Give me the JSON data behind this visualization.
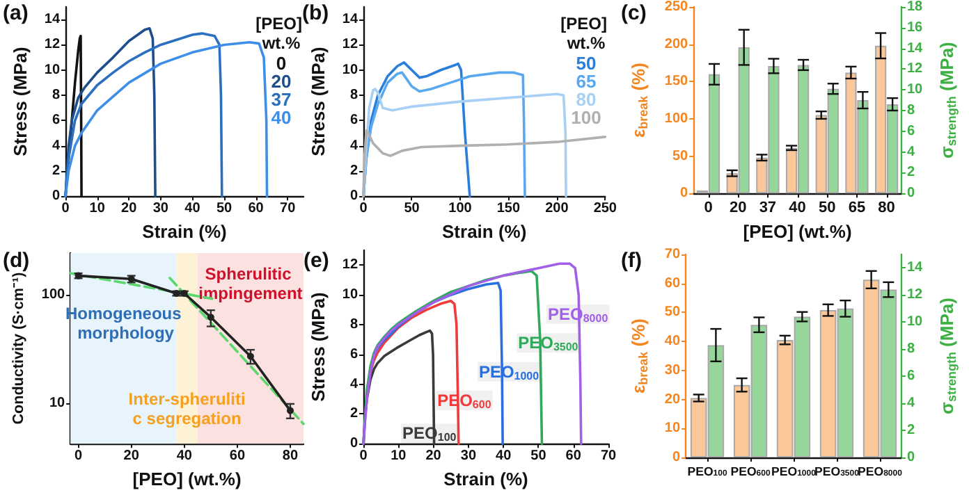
{
  "chart_data": [
    {
      "type": "line",
      "annotations": [
        "(a)"
      ],
      "xlabel": "Strain (%)",
      "ylabel": "Stress (MPa)",
      "legend_title": "[PEO] wt.%",
      "legend": "top right",
      "marker": "none",
      "xlim": [
        0,
        75
      ],
      "xticks": [
        0,
        10,
        20,
        30,
        40,
        50,
        60,
        70
      ],
      "ylim": [
        0,
        15
      ],
      "yticks": [
        0,
        2,
        4,
        6,
        8,
        10,
        12,
        14
      ],
      "series": [
        {
          "name": "0",
          "color": "#111111",
          "x": [
            0,
            1,
            2,
            3,
            4,
            4.5,
            4.8,
            4.95,
            5.05
          ],
          "values": [
            0,
            3,
            6,
            9,
            11.5,
            12.5,
            12.7,
            6,
            0
          ]
        },
        {
          "name": "20",
          "color": "#1f4e8c",
          "x": [
            0,
            1,
            2,
            4,
            6,
            10,
            15,
            20,
            25,
            26.5,
            27.5,
            28,
            28.3
          ],
          "values": [
            0,
            4,
            6,
            7.8,
            8.6,
            9.8,
            11,
            12.3,
            13.2,
            13.3,
            12.5,
            8,
            0
          ]
        },
        {
          "name": "37",
          "color": "#2a6fc0",
          "x": [
            0,
            1,
            3,
            5,
            10,
            15,
            20,
            25,
            30,
            35,
            40,
            43,
            47,
            48.5,
            49,
            49.3
          ],
          "values": [
            0,
            3,
            6,
            7.3,
            8.8,
            9.8,
            10.7,
            11.4,
            12,
            12.4,
            12.8,
            12.9,
            12.7,
            12,
            8,
            0
          ]
        },
        {
          "name": "40",
          "color": "#3d8ee8",
          "x": [
            0,
            1,
            3,
            5,
            10,
            20,
            30,
            40,
            50,
            58,
            61,
            62.5,
            63.3,
            63.5
          ],
          "values": [
            0,
            2,
            4,
            5,
            6.8,
            9,
            10.5,
            11.4,
            12,
            12.2,
            12.1,
            11,
            6,
            0
          ]
        }
      ]
    },
    {
      "type": "line",
      "annotations": [
        "(b)"
      ],
      "xlabel": "Strain (%)",
      "ylabel": "Stress (MPa)",
      "legend_title": "[PEO] wt.%",
      "legend": "top right",
      "marker": "none",
      "xlim": [
        0,
        250
      ],
      "xticks": [
        0,
        50,
        100,
        150,
        200,
        250
      ],
      "ylim": [
        0,
        15
      ],
      "yticks": [
        0,
        2,
        4,
        6,
        8,
        10,
        12,
        14
      ],
      "series": [
        {
          "name": "50",
          "color": "#2a7fdc",
          "x": [
            0,
            3,
            8,
            15,
            25,
            35,
            42,
            50,
            58,
            65,
            80,
            95,
            98,
            101,
            105,
            110
          ],
          "values": [
            0,
            3,
            6,
            8,
            9.5,
            10.3,
            10.6,
            10,
            9.4,
            9.5,
            10,
            10.4,
            10.5,
            10,
            5,
            0
          ]
        },
        {
          "name": "65",
          "color": "#5aa8ef",
          "x": [
            0,
            3,
            8,
            15,
            25,
            35,
            40,
            50,
            58,
            70,
            90,
            110,
            140,
            155,
            165,
            166,
            167
          ],
          "values": [
            0,
            3,
            5.5,
            7.3,
            9,
            9.7,
            9.8,
            8.7,
            8.3,
            8.5,
            9,
            9.5,
            9.8,
            9.8,
            9.6,
            6,
            0
          ]
        },
        {
          "name": "80",
          "color": "#a8d0f5",
          "x": [
            0,
            3,
            6,
            10,
            12,
            15,
            20,
            30,
            50,
            100,
            150,
            200,
            207,
            209,
            209.5
          ],
          "values": [
            0,
            4,
            7,
            8.4,
            8.5,
            8.2,
            7,
            6.8,
            7.1,
            7.5,
            7.8,
            8.1,
            8,
            5,
            0
          ]
        },
        {
          "name": "100",
          "color": "#b0b0b0",
          "x": [
            0,
            1,
            3,
            5,
            10,
            20,
            28,
            40,
            60,
            100,
            150,
            200,
            250
          ],
          "values": [
            0,
            3,
            5.2,
            5,
            4.2,
            3.4,
            3.2,
            3.6,
            3.9,
            4,
            4.1,
            4.3,
            4.7
          ]
        }
      ]
    },
    {
      "type": "bar",
      "annotations": [
        "(c)"
      ],
      "xlabel": "[PEO] (wt.%)",
      "ylabel": "ε$_{break}$ (%)",
      "y2label": "σ$_{strength}$ (MPa)",
      "categories": [
        "0",
        "20",
        "37",
        "40",
        "50",
        "65",
        "80"
      ],
      "ylim": [
        0,
        250
      ],
      "yticks": [
        0,
        50,
        100,
        150,
        200,
        250
      ],
      "y2lim": [
        0,
        18
      ],
      "y2ticks": [
        0,
        2,
        4,
        6,
        8,
        10,
        12,
        14,
        16,
        18
      ],
      "series": [
        {
          "color": "#fbc89b",
          "values": [
            4,
            27,
            48,
            61,
            105,
            162,
            198
          ],
          "errors": [
            null,
            4,
            4,
            3,
            5,
            8,
            17
          ]
        },
        {
          "color": "#97d69b",
          "axis": "y2",
          "values": [
            11.5,
            14.1,
            12.3,
            12.4,
            10.1,
            9,
            8.6
          ],
          "errors": [
            1,
            1.7,
            0.7,
            0.5,
            0.5,
            0.8,
            0.6
          ]
        }
      ]
    },
    {
      "type": "line",
      "annotations": [
        "(d)"
      ],
      "xlabel": "[PEO] (wt.%)",
      "ylabel": "Conductivity (S·cm⁻¹)",
      "marker": "circle",
      "log": "y",
      "xlim": [
        -3,
        85
      ],
      "xticks": [
        0,
        20,
        40,
        60,
        80
      ],
      "ylim": [
        4.2,
        243
      ],
      "yticks": [
        10,
        100
      ],
      "bands": [
        {
          "axis": "x",
          "from": -3,
          "to": 37,
          "label": "Homogeneous morphology",
          "color": "#e8f4fb"
        },
        {
          "axis": "x",
          "from": 37,
          "to": 45,
          "label": "Inter-spherulitic segregation",
          "color": "#fdf1d6"
        },
        {
          "axis": "x",
          "from": 45,
          "to": 85,
          "label": "Spherulitic impingement",
          "color": "#fbe1df"
        }
      ],
      "series": [
        {
          "type": "line",
          "color": "#5ad86e",
          "line_style": "dashed",
          "marker": "none",
          "x": [
            -3,
            50.5
          ],
          "values": [
            158,
            92
          ]
        },
        {
          "type": "line",
          "color": "#5ad86e",
          "line_style": "dashed",
          "marker": "none",
          "x": [
            34.5,
            85
          ],
          "values": [
            143,
            6.4
          ]
        },
        {
          "color": "#222222",
          "x": [
            0,
            20,
            37,
            40,
            50,
            65,
            80
          ],
          "values": [
            150,
            140,
            103,
            103,
            62,
            27,
            8.5
          ],
          "errors": [
            8,
            10,
            5,
            5,
            [
              51,
              72
            ],
            [
              23,
              31
            ],
            [
              7.2,
              9.8
            ]
          ]
        }
      ]
    },
    {
      "type": "line",
      "annotations": [
        "(e)"
      ],
      "xlabel": "Strain (%)",
      "ylabel": "Stress (MPa)",
      "marker": "none",
      "xlim": [
        0,
        70
      ],
      "xticks": [
        0,
        10,
        20,
        30,
        40,
        50,
        60,
        70
      ],
      "ylim": [
        0,
        13
      ],
      "yticks": [
        0,
        2,
        4,
        6,
        8,
        10,
        12
      ],
      "series": [
        {
          "name": "PEO$_{100}$",
          "color": "#3a3a3a",
          "x": [
            0,
            0.5,
            1,
            2,
            3,
            4,
            6,
            8,
            10,
            13,
            16,
            18,
            19,
            19.6,
            19.9,
            20.1,
            20.2
          ],
          "values": [
            0,
            1.8,
            3,
            4.3,
            5,
            5.4,
            5.9,
            6.2,
            6.5,
            6.9,
            7.3,
            7.5,
            7.6,
            7.4,
            6,
            2,
            0
          ]
        },
        {
          "name": "PEO$_{600}$",
          "color": "#ef3b3b",
          "x": [
            2,
            3,
            4,
            6,
            8,
            10,
            14,
            18,
            22,
            25,
            26,
            26.6,
            27,
            27.2
          ],
          "values": [
            4.8,
            5.6,
            6.1,
            6.8,
            7.3,
            7.8,
            8.5,
            9,
            9.4,
            9.6,
            9.4,
            8,
            3,
            0
          ]
        },
        {
          "name": "PEO$_{1000}$",
          "color": "#2a6fe0",
          "x": [
            3,
            4,
            6,
            8,
            10,
            15,
            20,
            25,
            30,
            35,
            38.5,
            39.2,
            39.6,
            39.8
          ],
          "values": [
            5.9,
            6.4,
            7,
            7.4,
            7.9,
            8.8,
            9.5,
            10,
            10.4,
            10.7,
            10.8,
            10.3,
            5,
            0
          ]
        },
        {
          "name": "PEO$_{3500}$",
          "color": "#2eaa5a",
          "x": [
            0,
            0.5,
            1,
            2,
            3,
            4,
            6,
            8,
            10,
            15,
            20,
            25,
            30,
            35,
            40,
            45,
            48,
            49.5,
            50.5,
            51
          ],
          "values": [
            0,
            2,
            3.6,
            5.2,
            6.1,
            6.6,
            7.2,
            7.7,
            8.1,
            8.9,
            9.6,
            10.2,
            10.6,
            11,
            11.3,
            11.5,
            11.6,
            11.3,
            7,
            0
          ]
        },
        {
          "name": "PEO$_{8000}$",
          "color": "#a260e8",
          "x": [
            0,
            0.5,
            1,
            2,
            3,
            4,
            6,
            8,
            10,
            15,
            20,
            30,
            40,
            50,
            56,
            59,
            60.5,
            61.5,
            62,
            62.2
          ],
          "values": [
            0,
            1.6,
            3,
            4.8,
            5.9,
            6.5,
            7.1,
            7.6,
            8,
            8.8,
            9.5,
            10.6,
            11.3,
            11.8,
            12.1,
            12.1,
            11.8,
            10,
            4,
            0
          ]
        }
      ]
    },
    {
      "type": "bar",
      "annotations": [
        "(f)"
      ],
      "ylabel": "ε$_{break}$ (%)",
      "y2label": "σ$_{strength}$ (MPa)",
      "categories": [
        "PEO$_{100}$",
        "PEO$_{600}$",
        "PEO$_{1000}$",
        "PEO$_{3500}$",
        "PEO$_{8000}$"
      ],
      "ylim": [
        0,
        70
      ],
      "yticks": [
        0,
        10,
        20,
        30,
        40,
        50,
        60,
        70
      ],
      "y2lim": [
        0,
        15
      ],
      "y2ticks": [
        0,
        2,
        4,
        6,
        8,
        10,
        12,
        14
      ],
      "series": [
        {
          "color": "#fbc89b",
          "values": [
            20.5,
            25,
            40.5,
            50.8,
            61.3
          ],
          "errors": [
            1.2,
            2.3,
            1.5,
            2,
            3
          ]
        },
        {
          "color": "#97d69b",
          "axis": "y2",
          "values": [
            8.3,
            9.8,
            10.4,
            11,
            12.4
          ],
          "errors": [
            1.2,
            0.55,
            0.35,
            0.6,
            0.55
          ]
        }
      ]
    }
  ]
}
